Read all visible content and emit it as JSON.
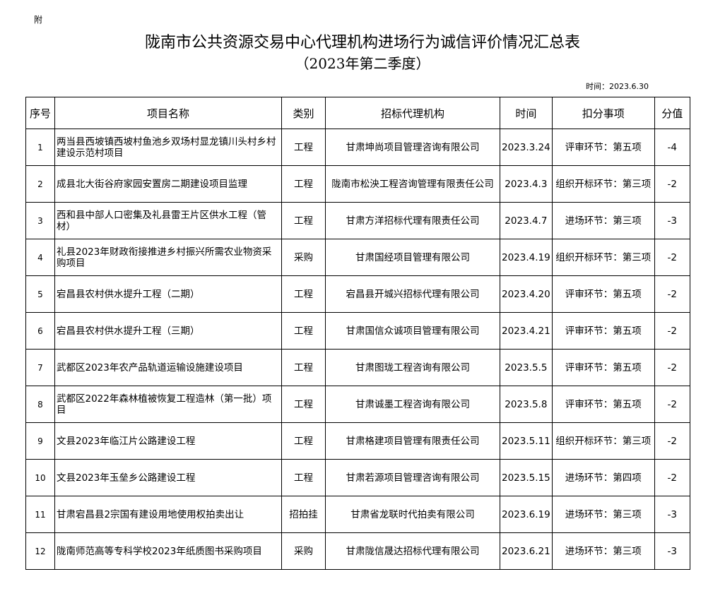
{
  "attachment_label": "附",
  "title": "陇南市公共资源交易中心代理机构进场行为诚信评价情况汇总表",
  "subtitle": "（2023年第二季度）",
  "date_label": "时间：2023.6.30",
  "headers": [
    "序号",
    "项目名称",
    "类别",
    "招标代理机构",
    "时间",
    "扣分事项",
    "分值"
  ],
  "rows": [
    [
      "1",
      "两当县西坡镇西坡村鱼池乡双场村显龙镇川头村乡村建设示范村项目",
      "工程",
      "甘肃坤尚项目管理咨询有限公司",
      "2023.3.24",
      "评审环节：第五项",
      "-4"
    ],
    [
      "2",
      "成县北大街谷府家园安置房二期建设项目监理",
      "工程",
      "陇南市松泱工程咨询管理有限责任公司",
      "2023.4.3",
      "组织开标环节：第三项",
      "-2"
    ],
    [
      "3",
      "西和县中部人口密集及礼县雷王片区供水工程（管材）",
      "工程",
      "甘肃方洋招标代理有限责任公司",
      "2023.4.7",
      "进场环节：第三项",
      "-3"
    ],
    [
      "4",
      "礼县2023年财政衔接推进乡村振兴所需农业物资采购项目",
      "采购",
      "甘肃国经项目管理有限公司",
      "2023.4.19",
      "组织开标环节：第三项",
      "-2"
    ],
    [
      "5",
      "宕昌县农村供水提升工程（二期）",
      "工程",
      "宕昌县开城兴招标代理有限公司",
      "2023.4.20",
      "评审环节：第五项",
      "-2"
    ],
    [
      "6",
      "宕昌县农村供水提升工程（三期）",
      "工程",
      "甘肃国信众诚项目管理有限公司",
      "2023.4.21",
      "评审环节：第五项",
      "-2"
    ],
    [
      "7",
      "武都区2023年农产品轨道运输设施建设项目",
      "工程",
      "甘肃图珑工程咨询有限公司",
      "2023.5.5",
      "评审环节：第五项",
      "-2"
    ],
    [
      "8",
      "武都区2022年森林植被恢复工程造林（第一批）项目",
      "工程",
      "甘肃诚墨工程咨询有限公司",
      "2023.5.8",
      "评审环节：第五项",
      "-2"
    ],
    [
      "9",
      "文县2023年临江片公路建设工程",
      "工程",
      "甘肃格建项目管理有限责任公司",
      "2023.5.11",
      "组织开标环节：第三项",
      "-2"
    ],
    [
      "10",
      "文县2023年玉垒乡公路建设工程",
      "工程",
      "甘肃若源项目管理咨询有限公司",
      "2023.5.15",
      "进场环节：第四项",
      "-2"
    ],
    [
      "11",
      "甘肃宕昌县2宗国有建设用地使用权拍卖出让",
      "招拍挂",
      "甘肃省龙联时代拍卖有限公司",
      "2023.6.19",
      "进场环节：第三项",
      "-3"
    ],
    [
      "12",
      "陇南师范高等专科学校2023年纸质图书采购项目",
      "采购",
      "甘肃陇信晟达招标代理有限公司",
      "2023.6.21",
      "进场环节：第三项",
      "-3"
    ]
  ]
}
